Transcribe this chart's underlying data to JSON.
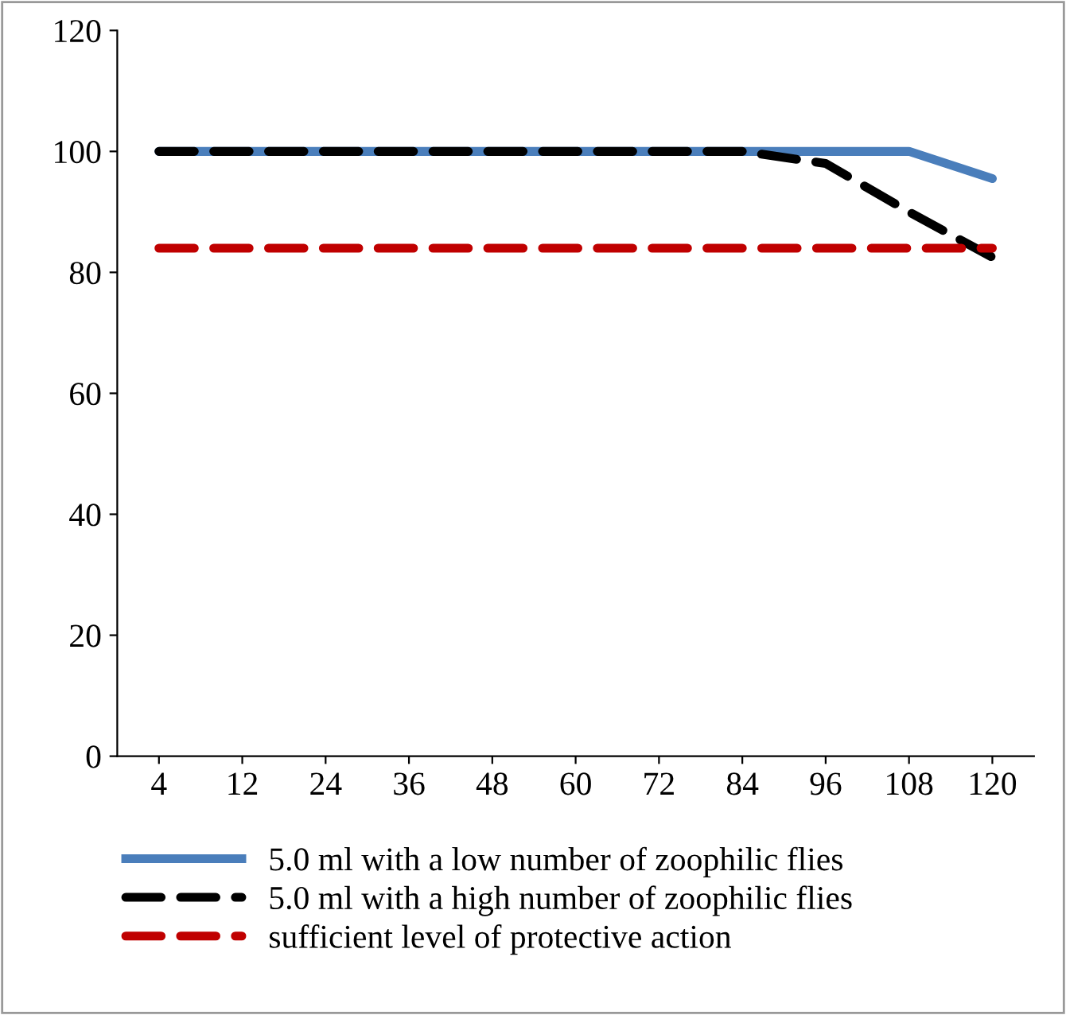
{
  "chart_data": {
    "type": "line",
    "categories": [
      "4",
      "12",
      "24",
      "36",
      "48",
      "60",
      "72",
      "84",
      "96",
      "108",
      "120"
    ],
    "series": [
      {
        "name": "5.0 ml with a low number of zoophilic flies",
        "color": "#4a7ebb",
        "line_style": "solid",
        "values": [
          100,
          100,
          100,
          100,
          100,
          100,
          100,
          100,
          100,
          100,
          95.5
        ]
      },
      {
        "name": "5.0 ml with a high number of zoophilic flies",
        "color": "#000000",
        "line_style": "dashed",
        "values": [
          100,
          100,
          100,
          100,
          100,
          100,
          100,
          100,
          98,
          90,
          82.5
        ]
      },
      {
        "name": "sufficient level of protective action",
        "color": "#c00000",
        "line_style": "dashed",
        "values": [
          84,
          84,
          84,
          84,
          84,
          84,
          84,
          84,
          84,
          84,
          84
        ]
      }
    ],
    "ylim": [
      0,
      120
    ],
    "yticks": [
      0,
      20,
      40,
      60,
      80,
      100,
      120
    ],
    "grid": false,
    "legend": "bottom",
    "marker": "none"
  }
}
